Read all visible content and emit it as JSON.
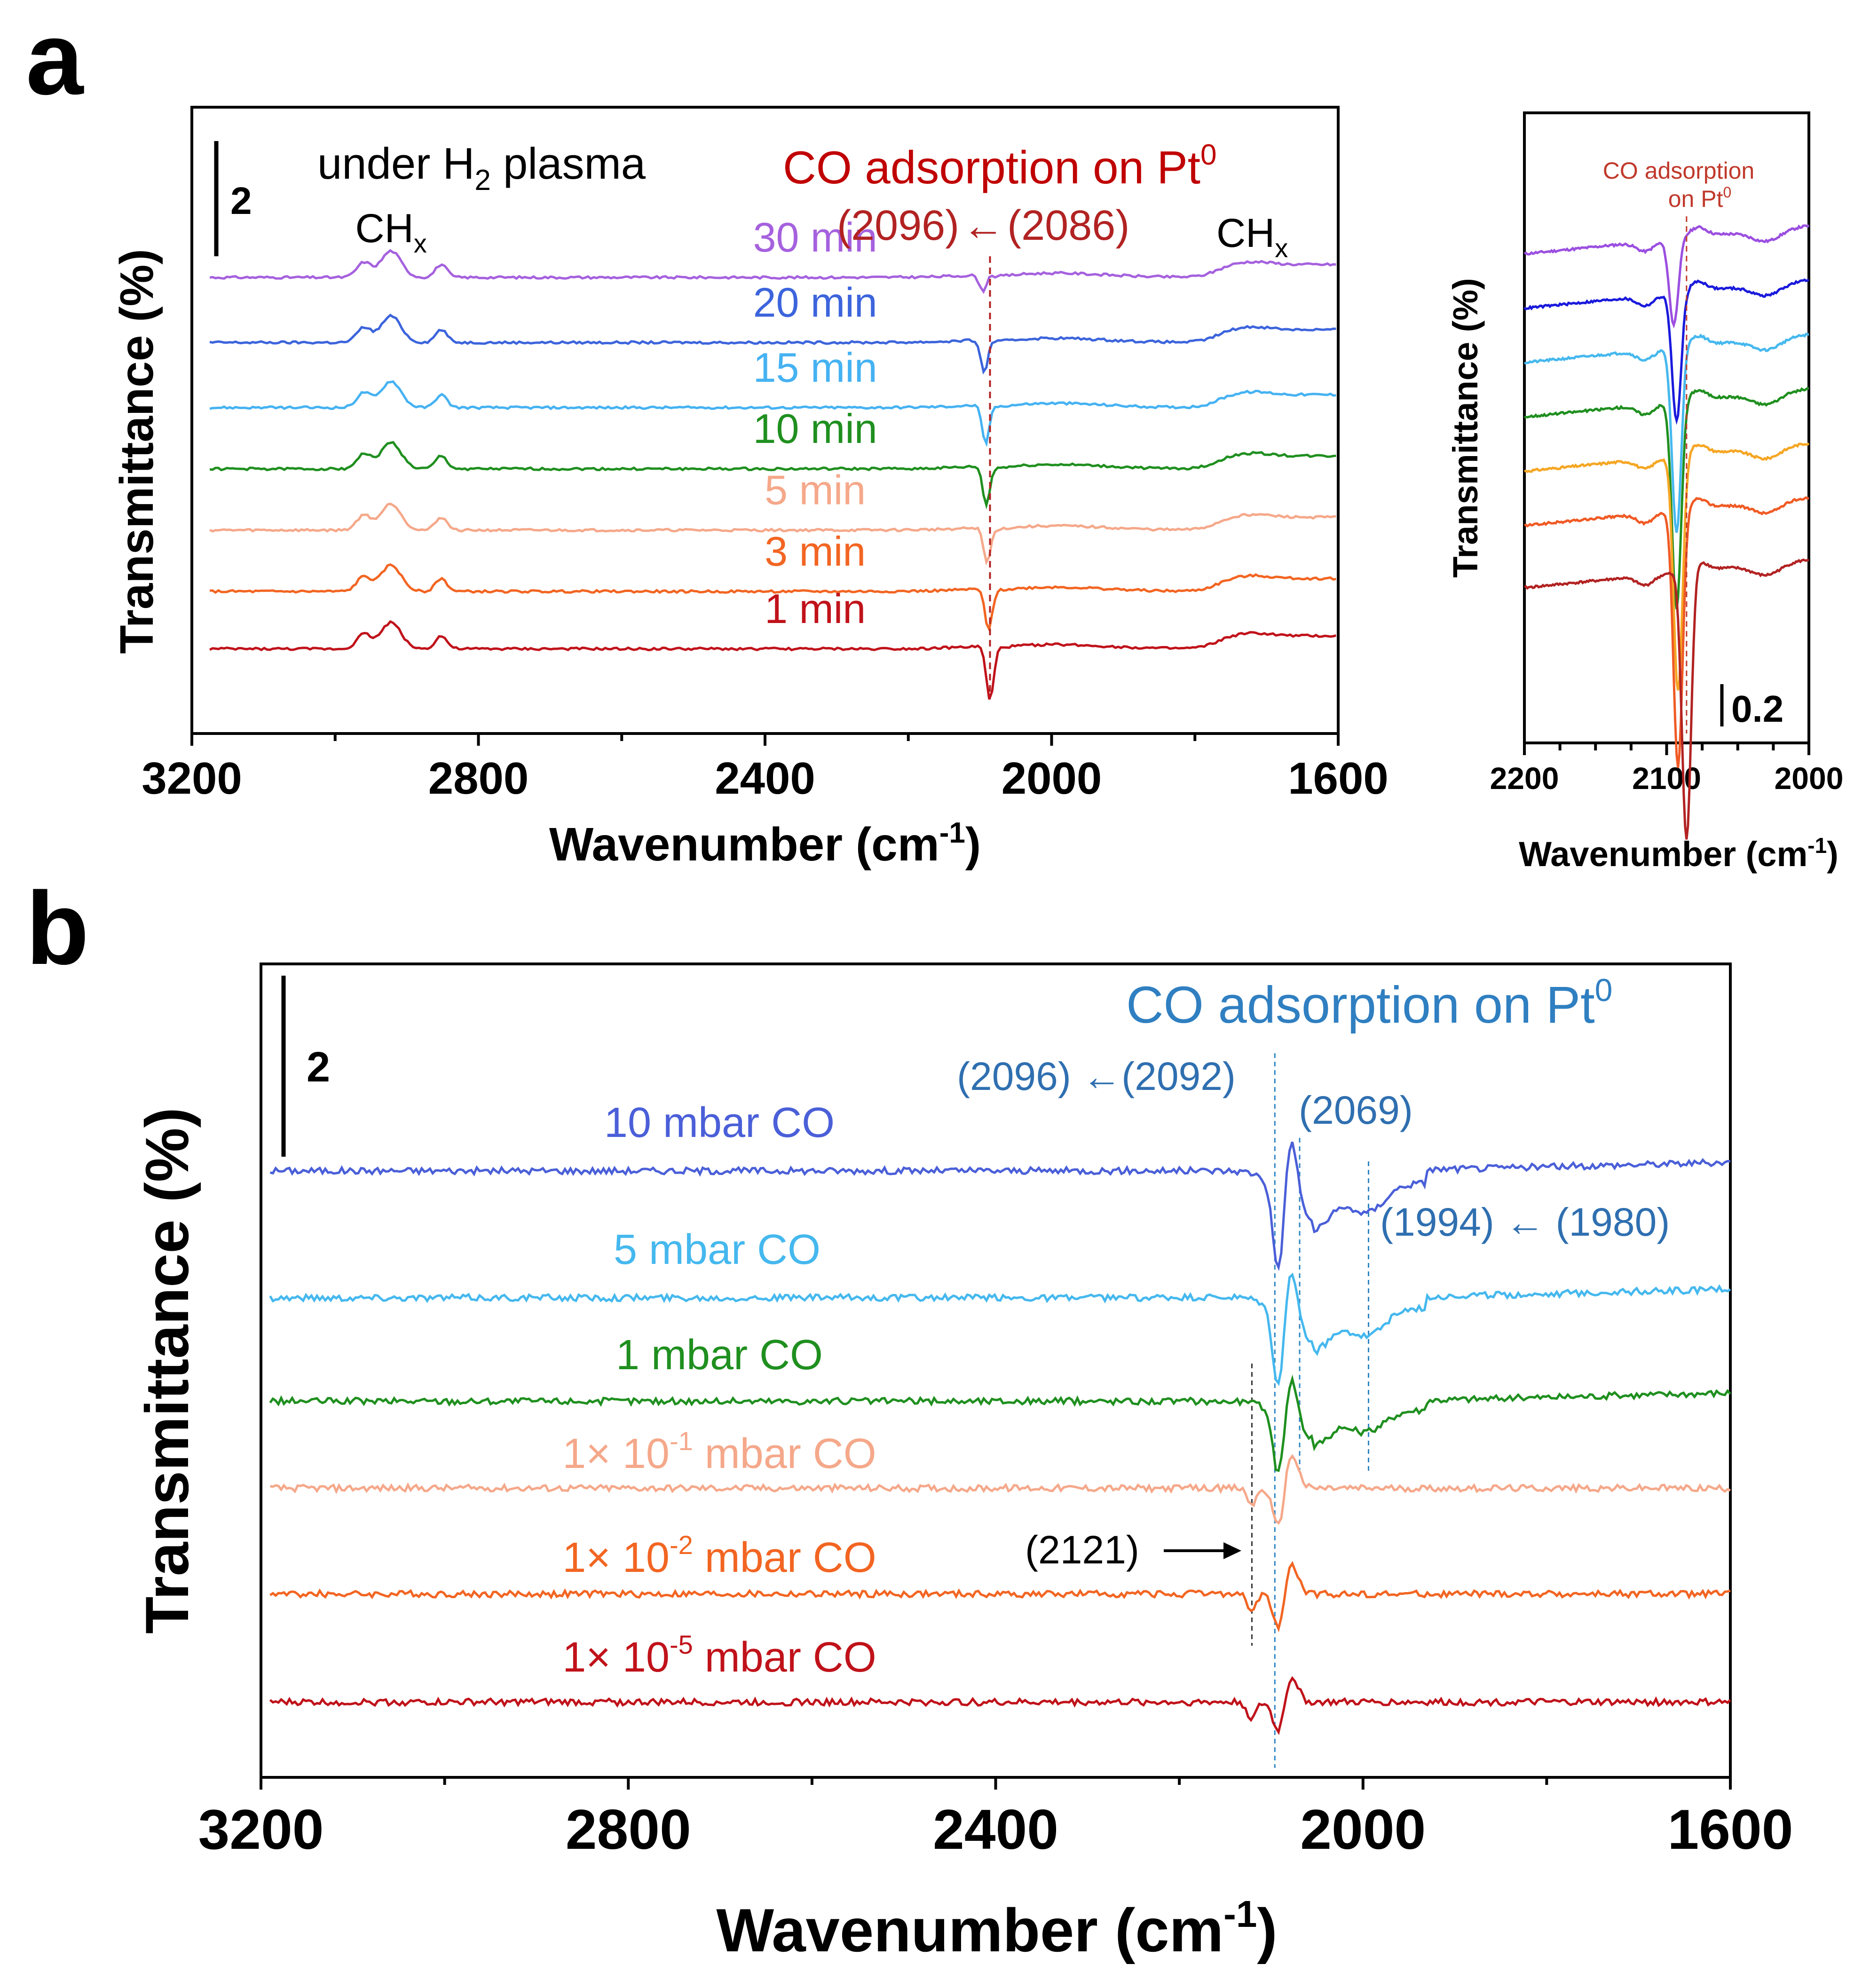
{
  "figure": {
    "panel_a_letter": "a",
    "panel_b_letter": "b"
  },
  "chart_data": [
    {
      "id": "a_main",
      "type": "line",
      "title": "under H",
      "title_sub": "2",
      "title_suffix": " plasma",
      "xlabel": "Wavenumber (cm",
      "xlabel_sup": "-1",
      "xlabel_end": ")",
      "ylabel": "Transmittance (%)",
      "xlim": [
        3200,
        1600
      ],
      "xticks": [
        3200,
        2800,
        2400,
        2000,
        1600
      ],
      "scale_bar_label": "2",
      "annotation": {
        "text": "CO adsorption on Pt",
        "sup": "0",
        "color": "#c00000"
      },
      "shift_labels": {
        "from": "(2096)",
        "arrow": "←",
        "to": "(2086)",
        "color": "#b22222"
      },
      "peak_labels": [
        {
          "text": "CH",
          "sub": "x",
          "x": 2922
        },
        {
          "text": "CH",
          "sub": "x",
          "x": 1720
        }
      ],
      "marker_x": 2086,
      "series": [
        {
          "name": "30 min",
          "color": "#a561de",
          "values": {
            "baseline": 238,
            "co_depth": 0.5,
            "co_center": 2096
          }
        },
        {
          "name": "20 min",
          "color": "#3c64dc",
          "values": {
            "baseline": 272,
            "co_depth": 1.0,
            "co_center": 2094
          }
        },
        {
          "name": "15 min",
          "color": "#45b2f2",
          "values": {
            "baseline": 306,
            "co_depth": 1.2,
            "co_center": 2092
          }
        },
        {
          "name": "10 min",
          "color": "#1f8f1f",
          "values": {
            "baseline": 338,
            "co_depth": 1.2,
            "co_center": 2091
          }
        },
        {
          "name": "5 min",
          "color": "#f5a88a",
          "values": {
            "baseline": 370,
            "co_depth": 1.1,
            "co_center": 2090
          }
        },
        {
          "name": "3 min",
          "color": "#f26522",
          "values": {
            "baseline": 402,
            "co_depth": 1.3,
            "co_center": 2088
          }
        },
        {
          "name": "1 min",
          "color": "#c0121a",
          "values": {
            "baseline": 432,
            "co_depth": 1.7,
            "co_center": 2086
          }
        }
      ]
    },
    {
      "id": "a_inset",
      "type": "line",
      "xlabel": "Wavenumber (cm",
      "xlabel_sup": "-1",
      "xlabel_end": ")",
      "ylabel": "Transmittance (%)",
      "xlim": [
        2200,
        2000
      ],
      "xticks": [
        2200,
        2100,
        2000
      ],
      "scale_bar_label": "0.2",
      "annotation": {
        "text1": "CO adsorption",
        "text2": "on Pt",
        "sup": "0",
        "color": "#c0392b"
      },
      "marker_x": 2086,
      "series": [
        {
          "name": "30 min",
          "color": "#9b4fe0",
          "values": {
            "baseline": 250,
            "co_depth": 1.2,
            "co_center": 2095
          }
        },
        {
          "name": "20 min",
          "color": "#1a1adc",
          "values": {
            "baseline": 285,
            "co_depth": 1.8,
            "co_center": 2093
          }
        },
        {
          "name": "15 min",
          "color": "#45b8ee",
          "values": {
            "baseline": 320,
            "co_depth": 2.6,
            "co_center": 2093
          }
        },
        {
          "name": "10 min",
          "color": "#1f8f1f",
          "values": {
            "baseline": 355,
            "co_depth": 2.9,
            "co_center": 2093
          }
        },
        {
          "name": "5 min",
          "color": "#f5a623",
          "values": {
            "baseline": 390,
            "co_depth": 3.3,
            "co_center": 2092
          }
        },
        {
          "name": "3 min",
          "color": "#f05a24",
          "values": {
            "baseline": 425,
            "co_depth": 3.6,
            "co_center": 2092
          }
        },
        {
          "name": "1 min",
          "color": "#b22222",
          "values": {
            "baseline": 465,
            "co_depth": 3.8,
            "co_center": 2086
          }
        }
      ]
    },
    {
      "id": "b",
      "type": "line",
      "xlabel": "Wavenumber (cm",
      "xlabel_sup": "-1",
      "xlabel_end": ")",
      "ylabel": "Transmittance (%)",
      "xlim": [
        3200,
        1600
      ],
      "xticks": [
        3200,
        2800,
        2400,
        2000,
        1600
      ],
      "scale_bar_label": "2",
      "annotation": {
        "text": "CO adsorption on Pt",
        "sup": "0",
        "color": "#2f7fc1"
      },
      "shift_labels": [
        {
          "text": "(2096) ←(2092)",
          "color": "#2f6fb0"
        },
        {
          "text": "(2069)",
          "color": "#2f6fb0"
        },
        {
          "text": "(1994) ← (1980)",
          "color": "#2f6fb0"
        },
        {
          "text": "(2121)",
          "color": "#000000"
        }
      ],
      "markers": [
        {
          "x": 2096,
          "color": "#2e86c1"
        },
        {
          "x": 2069,
          "color": "#2e86c1"
        },
        {
          "x": 1994,
          "color": "#2e86c1"
        },
        {
          "x": 2121,
          "color": "#333333"
        }
      ],
      "series": [
        {
          "name": "10 mbar CO",
          "label_main": "10 mbar CO",
          "color": "#4a5fd8"
        },
        {
          "name": "5 mbar CO",
          "label_main": "5 mbar CO",
          "color": "#45b8ee"
        },
        {
          "name": "1 mbar CO",
          "label_main": "1 mbar CO",
          "color": "#1f8f1f"
        },
        {
          "name": "1× 10-1 mbar CO",
          "label_pre": "1× 10",
          "label_sup": "-1",
          "label_post": "  mbar CO",
          "color": "#f5a88a"
        },
        {
          "name": "1× 10-2 mbar CO",
          "label_pre": "1× 10",
          "label_sup": "-2",
          "label_post": "  mbar CO",
          "color": "#f26522"
        },
        {
          "name": "1× 10-5 mbar CO",
          "label_pre": "1× 10",
          "label_sup": "-5",
          "label_post": "  mbar CO",
          "color": "#c0121a"
        }
      ]
    }
  ]
}
